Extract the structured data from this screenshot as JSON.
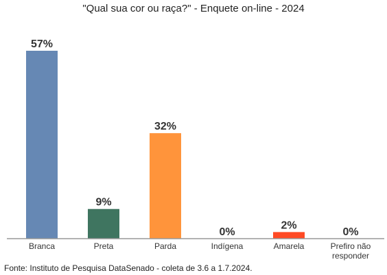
{
  "chart_data": {
    "type": "bar",
    "title": "\"Qual sua cor ou raça?\" - Enquete on-line - 2024",
    "categories": [
      "Branca",
      "Preta",
      "Parda",
      "Indígena",
      "Amarela",
      "Prefiro não responder"
    ],
    "category_lines": [
      [
        "Branca"
      ],
      [
        "Preta"
      ],
      [
        "Parda"
      ],
      [
        "Indígena"
      ],
      [
        "Amarela"
      ],
      [
        "Prefiro não",
        "responder"
      ]
    ],
    "values": [
      57,
      9,
      32,
      0,
      2,
      0
    ],
    "value_labels": [
      "57%",
      "9%",
      "32%",
      "0%",
      "2%",
      "0%"
    ],
    "colors": [
      "#6688B4",
      "#3F7560",
      "#FF943B",
      "#6688B4",
      "#FF4A24",
      "#6688B4"
    ],
    "ylim": [
      0,
      57
    ],
    "xlabel": "",
    "ylabel": "",
    "grid": false,
    "legend": "none"
  },
  "source_note": "Fonte: Instituto de Pesquisa DataSenado - coleta de 3.6 a 1.7.2024."
}
